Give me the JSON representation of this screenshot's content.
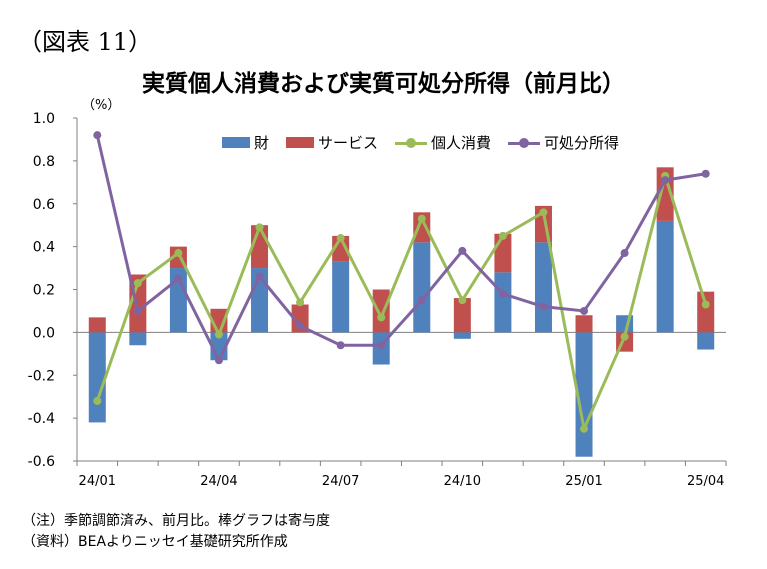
{
  "figure_label": "（図表 11）",
  "chart_data": {
    "type": "bar",
    "title": "実質個人消費および実質可処分所得（前月比）",
    "unit_label": "（%）",
    "ylim": [
      -0.6,
      1.0
    ],
    "yticks": [
      "1.0",
      "0.8",
      "0.6",
      "0.4",
      "0.2",
      "0.0",
      "-0.2",
      "-0.4",
      "-0.6"
    ],
    "grid": false,
    "legend_position": "top",
    "categories": [
      "24/01",
      "24/02",
      "24/03",
      "24/04",
      "24/05",
      "24/06",
      "24/07",
      "24/08",
      "24/09",
      "24/10",
      "24/11",
      "24/12",
      "25/01",
      "25/02",
      "25/03",
      "25/04"
    ],
    "x_tick_labels": [
      "24/01",
      "",
      "",
      "24/04",
      "",
      "",
      "24/07",
      "",
      "",
      "24/10",
      "",
      "",
      "25/01",
      "",
      "",
      "25/04"
    ],
    "series": [
      {
        "name": "財",
        "kind": "stacked-bar",
        "color": "#4f81bd",
        "values": [
          -0.42,
          -0.06,
          0.3,
          -0.13,
          0.3,
          0.0,
          0.33,
          -0.15,
          0.42,
          -0.03,
          0.28,
          0.42,
          -0.58,
          0.08,
          0.52,
          -0.08
        ]
      },
      {
        "name": "サービス",
        "kind": "stacked-bar",
        "color": "#c0504d",
        "values": [
          0.07,
          0.27,
          0.1,
          0.11,
          0.2,
          0.13,
          0.12,
          0.2,
          0.14,
          0.16,
          0.18,
          0.17,
          0.08,
          -0.09,
          0.25,
          0.19
        ]
      },
      {
        "name": "個人消費",
        "kind": "line",
        "color": "#9bbb59",
        "values": [
          -0.32,
          0.23,
          0.37,
          -0.01,
          0.49,
          0.14,
          0.44,
          0.07,
          0.53,
          0.15,
          0.45,
          0.56,
          -0.45,
          -0.02,
          0.73,
          0.13
        ]
      },
      {
        "name": "可処分所得",
        "kind": "line",
        "color": "#8064a2",
        "values": [
          0.92,
          0.1,
          0.25,
          -0.13,
          0.26,
          0.03,
          -0.06,
          -0.06,
          0.15,
          0.38,
          0.18,
          0.12,
          0.1,
          0.37,
          0.71,
          0.74
        ]
      }
    ]
  },
  "notes": [
    "（注）季節調節済み、前月比。棒グラフは寄与度",
    "（資料）BEAよりニッセイ基礎研究所作成"
  ]
}
